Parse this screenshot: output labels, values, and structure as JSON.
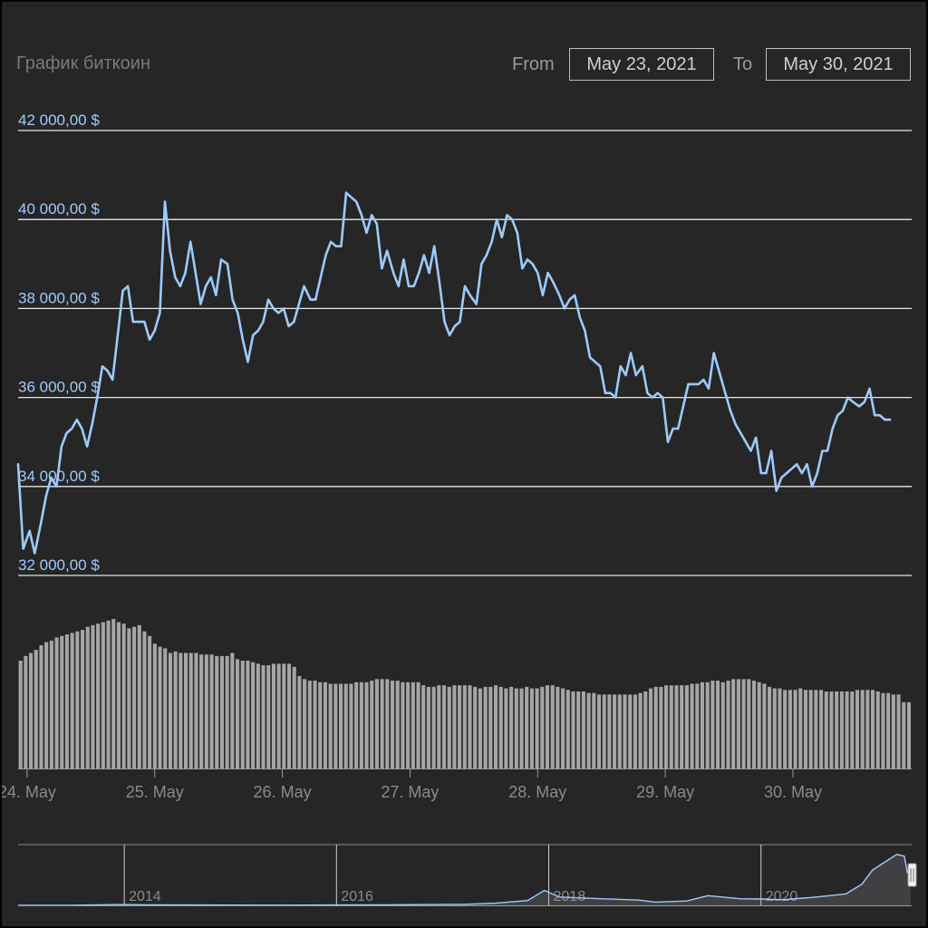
{
  "header": {
    "title": "График биткоин",
    "from_label": "From",
    "from_value": "May 23, 2021",
    "to_label": "To",
    "to_value": "May 30, 2021"
  },
  "colors": {
    "background": "#262626",
    "line": "#9ecbff",
    "axis_label": "#9ecbff",
    "grid": "#e6e6e6",
    "volume_bar": "#a6a6a6",
    "muted_text": "#8a8a8a"
  },
  "chart_data": [
    {
      "type": "line",
      "title": "График биткоин",
      "xlabel": "",
      "ylabel": "",
      "ylim": [
        32000,
        42000
      ],
      "grid": true,
      "y_ticks": [
        32000,
        34000,
        36000,
        38000,
        40000,
        42000
      ],
      "y_tick_labels": [
        "32 000,00 $",
        "34 000,00 $",
        "36 000,00 $",
        "38 000,00 $",
        "40 000,00 $",
        "42 000,00 $"
      ],
      "x_range": [
        0,
        7
      ],
      "x_ticks": [
        0.07,
        1.07,
        2.07,
        3.07,
        4.07,
        5.07,
        6.07
      ],
      "x_tick_labels": [
        "24. May",
        "25. May",
        "26. May",
        "27. May",
        "28. May",
        "29. May",
        "30. May"
      ],
      "series": [
        {
          "values": [
            [
              0.0,
              34500
            ],
            [
              0.04,
              32600
            ],
            [
              0.09,
              33000
            ],
            [
              0.13,
              32500
            ],
            [
              0.18,
              33200
            ],
            [
              0.22,
              33800
            ],
            [
              0.26,
              34200
            ],
            [
              0.3,
              34000
            ],
            [
              0.34,
              34900
            ],
            [
              0.38,
              35200
            ],
            [
              0.42,
              35300
            ],
            [
              0.46,
              35500
            ],
            [
              0.5,
              35300
            ],
            [
              0.54,
              34900
            ],
            [
              0.58,
              35400
            ],
            [
              0.62,
              36000
            ],
            [
              0.66,
              36700
            ],
            [
              0.7,
              36600
            ],
            [
              0.74,
              36400
            ],
            [
              0.78,
              37400
            ],
            [
              0.82,
              38400
            ],
            [
              0.86,
              38500
            ],
            [
              0.9,
              37700
            ],
            [
              0.94,
              37700
            ],
            [
              0.99,
              37700
            ],
            [
              1.03,
              37300
            ],
            [
              1.07,
              37500
            ],
            [
              1.11,
              37900
            ],
            [
              1.15,
              40400
            ],
            [
              1.19,
              39300
            ],
            [
              1.23,
              38700
            ],
            [
              1.27,
              38500
            ],
            [
              1.31,
              38800
            ],
            [
              1.35,
              39500
            ],
            [
              1.39,
              38800
            ],
            [
              1.43,
              38100
            ],
            [
              1.47,
              38500
            ],
            [
              1.51,
              38700
            ],
            [
              1.55,
              38300
            ],
            [
              1.59,
              39100
            ],
            [
              1.64,
              39000
            ],
            [
              1.68,
              38200
            ],
            [
              1.72,
              37900
            ],
            [
              1.76,
              37300
            ],
            [
              1.8,
              36800
            ],
            [
              1.84,
              37400
            ],
            [
              1.88,
              37500
            ],
            [
              1.92,
              37700
            ],
            [
              1.96,
              38200
            ],
            [
              2.0,
              38000
            ],
            [
              2.04,
              37900
            ],
            [
              2.08,
              38000
            ],
            [
              2.12,
              37600
            ],
            [
              2.16,
              37700
            ],
            [
              2.2,
              38100
            ],
            [
              2.24,
              38500
            ],
            [
              2.29,
              38200
            ],
            [
              2.33,
              38200
            ],
            [
              2.37,
              38700
            ],
            [
              2.41,
              39200
            ],
            [
              2.45,
              39500
            ],
            [
              2.49,
              39400
            ],
            [
              2.53,
              39400
            ],
            [
              2.57,
              40600
            ],
            [
              2.61,
              40500
            ],
            [
              2.65,
              40400
            ],
            [
              2.69,
              40100
            ],
            [
              2.73,
              39700
            ],
            [
              2.77,
              40100
            ],
            [
              2.81,
              39900
            ],
            [
              2.85,
              38900
            ],
            [
              2.89,
              39300
            ],
            [
              2.94,
              38800
            ],
            [
              2.98,
              38500
            ],
            [
              3.02,
              39100
            ],
            [
              3.06,
              38500
            ],
            [
              3.1,
              38500
            ],
            [
              3.14,
              38800
            ],
            [
              3.18,
              39200
            ],
            [
              3.22,
              38800
            ],
            [
              3.26,
              39400
            ],
            [
              3.3,
              38600
            ],
            [
              3.34,
              37700
            ],
            [
              3.38,
              37400
            ],
            [
              3.42,
              37600
            ],
            [
              3.46,
              37700
            ],
            [
              3.5,
              38500
            ],
            [
              3.54,
              38300
            ],
            [
              3.59,
              38100
            ],
            [
              3.63,
              39000
            ],
            [
              3.67,
              39200
            ],
            [
              3.71,
              39500
            ],
            [
              3.75,
              40000
            ],
            [
              3.79,
              39600
            ],
            [
              3.83,
              40100
            ],
            [
              3.87,
              40000
            ],
            [
              3.91,
              39700
            ],
            [
              3.95,
              38900
            ],
            [
              3.99,
              39100
            ],
            [
              4.03,
              39000
            ],
            [
              4.07,
              38800
            ],
            [
              4.11,
              38300
            ],
            [
              4.15,
              38800
            ],
            [
              4.19,
              38600
            ],
            [
              4.24,
              38300
            ],
            [
              4.28,
              38000
            ],
            [
              4.32,
              38200
            ],
            [
              4.36,
              38300
            ],
            [
              4.4,
              37800
            ],
            [
              4.44,
              37500
            ],
            [
              4.48,
              36900
            ],
            [
              4.52,
              36800
            ],
            [
              4.56,
              36700
            ],
            [
              4.6,
              36100
            ],
            [
              4.64,
              36100
            ],
            [
              4.68,
              36000
            ],
            [
              4.72,
              36700
            ],
            [
              4.76,
              36500
            ],
            [
              4.8,
              37000
            ],
            [
              4.84,
              36500
            ],
            [
              4.89,
              36700
            ],
            [
              4.93,
              36100
            ],
            [
              4.97,
              36000
            ],
            [
              5.01,
              36100
            ],
            [
              5.05,
              36000
            ],
            [
              5.09,
              35000
            ],
            [
              5.13,
              35300
            ],
            [
              5.17,
              35300
            ],
            [
              5.21,
              35800
            ],
            [
              5.25,
              36300
            ],
            [
              5.29,
              36300
            ],
            [
              5.33,
              36300
            ],
            [
              5.37,
              36400
            ],
            [
              5.41,
              36200
            ],
            [
              5.45,
              37000
            ],
            [
              5.49,
              36600
            ],
            [
              5.54,
              36100
            ],
            [
              5.58,
              35700
            ],
            [
              5.62,
              35400
            ],
            [
              5.66,
              35200
            ],
            [
              5.7,
              35000
            ],
            [
              5.74,
              34800
            ],
            [
              5.78,
              35100
            ],
            [
              5.82,
              34300
            ],
            [
              5.86,
              34300
            ],
            [
              5.9,
              34800
            ],
            [
              5.94,
              33900
            ],
            [
              5.98,
              34200
            ],
            [
              6.02,
              34300
            ],
            [
              6.06,
              34400
            ],
            [
              6.1,
              34500
            ],
            [
              6.14,
              34300
            ],
            [
              6.18,
              34500
            ],
            [
              6.22,
              34000
            ],
            [
              6.26,
              34300
            ],
            [
              6.3,
              34800
            ],
            [
              6.34,
              34800
            ],
            [
              6.38,
              35300
            ],
            [
              6.42,
              35600
            ],
            [
              6.46,
              35700
            ],
            [
              6.5,
              36000
            ],
            [
              6.54,
              35900
            ],
            [
              6.59,
              35800
            ],
            [
              6.63,
              35900
            ],
            [
              6.67,
              36200
            ],
            [
              6.71,
              35600
            ],
            [
              6.75,
              35600
            ],
            [
              6.79,
              35500
            ],
            [
              6.83,
              35500
            ]
          ]
        }
      ]
    },
    {
      "type": "bar",
      "title": "",
      "x_range": [
        0,
        7
      ],
      "ylim": [
        0,
        100
      ],
      "values": [
        70,
        73,
        75,
        77,
        80,
        82,
        83,
        85,
        86,
        87,
        88,
        89,
        90,
        92,
        93,
        94,
        95,
        96,
        97,
        95,
        94,
        91,
        92,
        93,
        89,
        86,
        81,
        79,
        78,
        75,
        76,
        75,
        75,
        75,
        75,
        74,
        74,
        74,
        73,
        73,
        73,
        75,
        71,
        70,
        70,
        69,
        68,
        67,
        67,
        68,
        68,
        68,
        68,
        66,
        60,
        58,
        57,
        57,
        56,
        56,
        55,
        55,
        55,
        55,
        55,
        56,
        56,
        56,
        57,
        58,
        58,
        58,
        57,
        57,
        56,
        56,
        56,
        56,
        54,
        53,
        53,
        54,
        54,
        53,
        54,
        54,
        54,
        54,
        53,
        52,
        53,
        53,
        54,
        53,
        52,
        53,
        52,
        52,
        53,
        52,
        52,
        53,
        54,
        54,
        53,
        52,
        51,
        50,
        50,
        50,
        49,
        49,
        48,
        48,
        48,
        48,
        48,
        48,
        48,
        48,
        49,
        50,
        52,
        53,
        53,
        54,
        54,
        54,
        54,
        54,
        55,
        55,
        56,
        56,
        57,
        57,
        56,
        57,
        58,
        58,
        58,
        58,
        57,
        56,
        55,
        53,
        52,
        52,
        51,
        51,
        51,
        52,
        51,
        51,
        51,
        51,
        50,
        50,
        50,
        50,
        50,
        50,
        51,
        51,
        51,
        51,
        50,
        49,
        49,
        48,
        48,
        43,
        43
      ]
    },
    {
      "type": "area",
      "title": "",
      "x_range": [
        2013,
        2021.42
      ],
      "x_ticks": [
        2014,
        2016,
        2018,
        2020
      ],
      "x_tick_labels": [
        "2014",
        "2016",
        "2018",
        "2020"
      ],
      "ylim": [
        0,
        65000
      ],
      "values": [
        [
          2013.0,
          100
        ],
        [
          2013.5,
          110
        ],
        [
          2013.95,
          900
        ],
        [
          2014.2,
          600
        ],
        [
          2014.6,
          450
        ],
        [
          2015.0,
          300
        ],
        [
          2015.5,
          250
        ],
        [
          2016.0,
          430
        ],
        [
          2016.5,
          650
        ],
        [
          2016.9,
          900
        ],
        [
          2017.2,
          1100
        ],
        [
          2017.5,
          2500
        ],
        [
          2017.8,
          5500
        ],
        [
          2017.96,
          17000
        ],
        [
          2018.1,
          9500
        ],
        [
          2018.5,
          7500
        ],
        [
          2018.85,
          6000
        ],
        [
          2019.0,
          3700
        ],
        [
          2019.3,
          5000
        ],
        [
          2019.5,
          11000
        ],
        [
          2019.8,
          7500
        ],
        [
          2020.0,
          7200
        ],
        [
          2020.2,
          6400
        ],
        [
          2020.5,
          9200
        ],
        [
          2020.8,
          13000
        ],
        [
          2020.95,
          24000
        ],
        [
          2021.05,
          40000
        ],
        [
          2021.15,
          48000
        ],
        [
          2021.28,
          58000
        ],
        [
          2021.35,
          56000
        ],
        [
          2021.38,
          37000
        ],
        [
          2021.41,
          35000
        ]
      ]
    }
  ]
}
